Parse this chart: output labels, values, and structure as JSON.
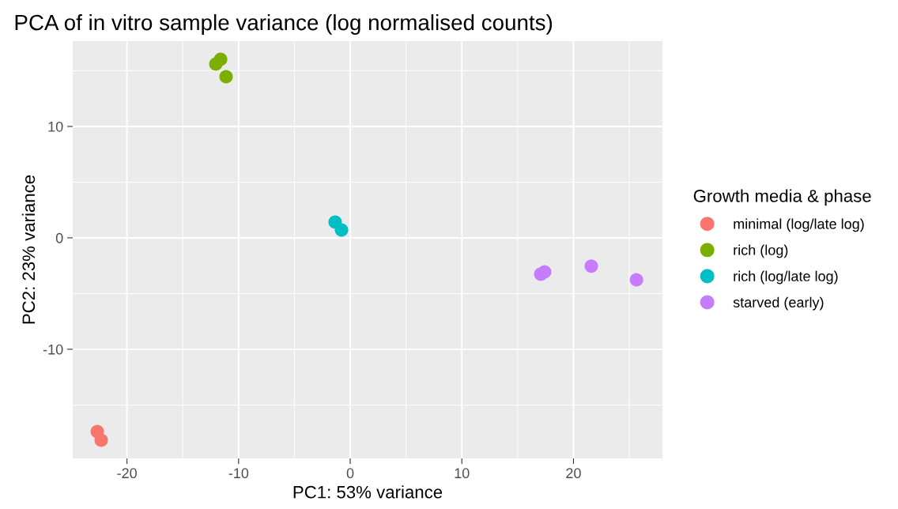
{
  "chart_data": {
    "type": "scatter",
    "title": "PCA of in vitro sample variance (log normalised counts)",
    "xlabel": "PC1: 53% variance",
    "ylabel": "PC2: 23% variance",
    "legend_title": "Growth media & phase",
    "series": [
      {
        "name": "minimal (log/late log)",
        "color": "#f8766d",
        "x": [
          -22.66,
          -22.31
        ],
        "values": [
          -17.38,
          -18.16
        ]
      },
      {
        "name": "rich (log)",
        "color": "#7cae00",
        "x": [
          -12.04,
          -11.61,
          -11.12
        ],
        "values": [
          15.6,
          16.03,
          14.47
        ]
      },
      {
        "name": "rich (log/late log)",
        "color": "#00bfc4",
        "x": [
          -1.35,
          -0.78
        ],
        "values": [
          1.42,
          0.71
        ]
      },
      {
        "name": "starved (early)",
        "color": "#c77cff",
        "x": [
          17.07,
          17.42,
          21.6,
          25.64
        ],
        "values": [
          -3.26,
          -3.05,
          -2.55,
          -3.76
        ]
      }
    ],
    "xlim": [
      -24.86,
      27.97
    ],
    "ylim": [
      -19.8,
      17.66
    ],
    "xticks": [
      -20,
      -10,
      0,
      10,
      20
    ],
    "yticks": [
      -10,
      0,
      10
    ],
    "grid": true,
    "legend": "right",
    "marker": "circle"
  }
}
